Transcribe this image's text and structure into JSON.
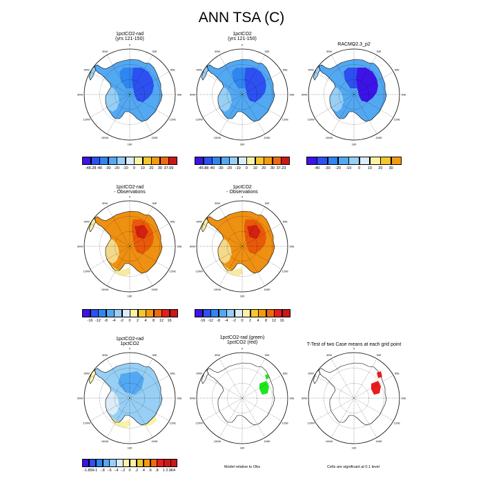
{
  "title": "ANN TSA (C)",
  "colors": {
    "cool": [
      "#3c14e6",
      "#2d50f0",
      "#2f86f0",
      "#53a8f2",
      "#98cff4",
      "#dcecf8"
    ],
    "warm": [
      "#f9f1a6",
      "#f6c62e",
      "#f49a0e",
      "#ee6a10",
      "#e81c1c",
      "#c81818"
    ],
    "diff_warm": [
      "#f7ec9e",
      "#f5d98a",
      "#f2b84a",
      "#ee9012",
      "#e85a0a",
      "#d42010",
      "#b01010"
    ]
  },
  "labels": {
    "ring_lon": [
      "0",
      "30E",
      "60E",
      "90E",
      "120E",
      "150E",
      "180",
      "150W",
      "120W",
      "90W",
      "60W",
      "30W"
    ]
  },
  "panels": [
    {
      "id": "p1",
      "title": [
        "1pctCO2-rad",
        "(yrs 121-150)"
      ],
      "fill": "cold"
    },
    {
      "id": "p2",
      "title": [
        "1pctCO2",
        "(yrs 121-150)"
      ],
      "fill": "cold"
    },
    {
      "id": "p3",
      "title": [
        "RACMO2.3_p2"
      ],
      "fill": "colder"
    },
    {
      "id": "p4",
      "title": [
        "1pctCO2-rad",
        "- Observations"
      ],
      "fill": "warmdiff"
    },
    {
      "id": "p5",
      "title": [
        "1pctCO2",
        "- Observations"
      ],
      "fill": "warmdiff"
    },
    {
      "id": "p6",
      "title": [
        "1pctCO2-rad",
        "1pctCO2"
      ],
      "fill": "smalldiff"
    },
    {
      "id": "p7",
      "title": [
        "1pctCO2-rad (green)",
        "1pctCO2 (red)"
      ],
      "fill": "greenpatch"
    },
    {
      "id": "p8",
      "title": [
        "T-Test of two Case means at each grid point"
      ],
      "fill": "redpatch"
    }
  ],
  "colorbars": [
    {
      "id": "cb1",
      "labels": [
        "-48.28",
        "-40",
        "-30",
        "-20",
        "-10",
        "0",
        "10",
        "20",
        "30",
        "37.09"
      ]
    },
    {
      "id": "cb2",
      "labels": [
        "-45.88",
        "-40",
        "-30",
        "-20",
        "-10",
        "0",
        "10",
        "20",
        "30",
        "37.23"
      ]
    },
    {
      "id": "cb3",
      "labels": [
        "-40",
        "-30",
        "-20",
        "-10",
        "0",
        "10",
        "20",
        "30"
      ]
    },
    {
      "id": "cb4",
      "labels": [
        "-16",
        "-12",
        "-8",
        "-4",
        "-2",
        "0",
        "2",
        "4",
        "8",
        "12",
        "16"
      ]
    },
    {
      "id": "cb5",
      "labels": [
        "-16",
        "-12",
        "-8",
        "-4",
        "-2",
        "0",
        "2",
        "4",
        "8",
        "12",
        "16"
      ]
    },
    {
      "id": "cb6",
      "labels": [
        "-1.856",
        "-1",
        "-.8",
        "-.6",
        "-.4",
        "-.2",
        "0",
        ".2",
        ".4",
        ".6",
        ".8",
        "1",
        "2.964"
      ]
    }
  ],
  "notes": {
    "model_relative": "Model relative to Obs",
    "significance": "Cells are significant at 0.1 level"
  }
}
